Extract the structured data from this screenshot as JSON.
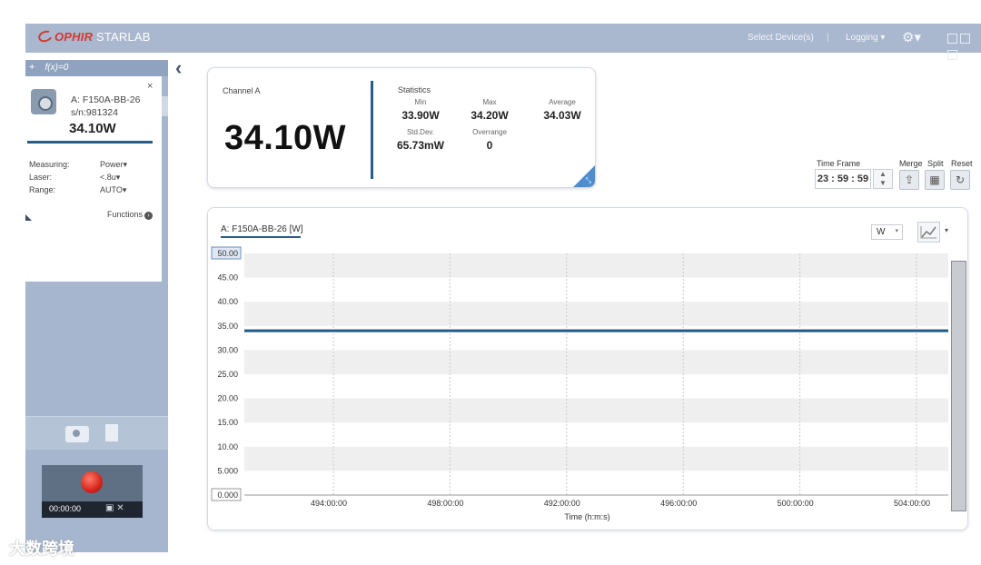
{
  "header": {
    "brand_ophir": "OPHIR",
    "brand_starlab": "STARLAB",
    "select_devices": "Select Device(s)",
    "separator": "|",
    "logging": "Logging"
  },
  "sidebar": {
    "toolbar_plus": "+",
    "toolbar_fx": "f(x)=0",
    "device": {
      "close": "×",
      "name": "A: F150A-BB-26",
      "serial": "s/n:981324",
      "value": "34.10W"
    },
    "properties": [
      {
        "label": "Measuring:",
        "value": "Power"
      },
      {
        "label": "Laser:",
        "value": "<.8u"
      },
      {
        "label": "Range:",
        "value": "AUTO"
      }
    ],
    "functions_label": "Functions",
    "recorder_time": "00:00:00"
  },
  "channel": {
    "label": "Channel A",
    "value": "34.10W",
    "statistics_title": "Statistics",
    "stats": {
      "min_label": "Min",
      "min_value": "33.90W",
      "max_label": "Max",
      "max_value": "34.20W",
      "avg_label": "Average",
      "avg_value": "34.03W",
      "std_label": "Std.Dev.",
      "std_value": "65.73mW",
      "over_label": "Overrange",
      "over_value": "0"
    }
  },
  "controls": {
    "time_frame_label": "Time Frame",
    "time_frame_value": "23 : 59 : 59",
    "merge_label": "Merge",
    "split_label": "Split",
    "reset_label": "Reset"
  },
  "graph": {
    "title": "A: F150A-BB-26 [W]",
    "unit": "W",
    "xlabel": "Time (h:m:s)",
    "y_ticks": [
      "50.00",
      "45.00",
      "40.00",
      "35.00",
      "30.00",
      "25.00",
      "20.00",
      "15.00",
      "10.00",
      "5.000",
      "0.000"
    ],
    "x_ticks": [
      "494:00:00",
      "498:00:00",
      "492:00:00",
      "496:00:00",
      "500:00:00",
      "504:00:00"
    ],
    "line_value": 34.0,
    "ylim": [
      0,
      50
    ]
  },
  "chart_data": {
    "type": "line",
    "title": "A: F150A-BB-26 [W]",
    "xlabel": "Time (h:m:s)",
    "ylabel": "",
    "ylim": [
      0,
      50
    ],
    "x": [
      "494:00:00",
      "498:00:00",
      "492:00:00",
      "496:00:00",
      "500:00:00",
      "504:00:00"
    ],
    "series": [
      {
        "values": [
          34.0,
          34.0,
          34.0,
          34.0,
          34.0,
          34.0
        ]
      }
    ]
  },
  "watermark": "大数跨境",
  "colors": {
    "accent": "#2a5c8a",
    "header": "#a9b7cf",
    "record": "#d5241b"
  }
}
